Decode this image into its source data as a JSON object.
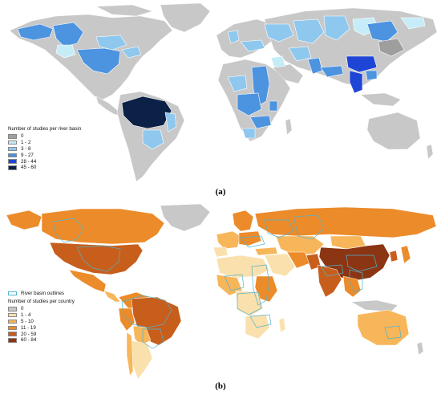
{
  "colors": {
    "ocean": "#ffffff",
    "land_default": "#c8c8c8",
    "basin_outline": "#4fb3cf"
  },
  "panel_a": {
    "caption_label": "(a)",
    "legend": {
      "title": "Number of studies per river basin",
      "items": [
        {
          "label": "0",
          "color": "#9e9e9e"
        },
        {
          "label": "1 - 2",
          "color": "#c6ecf7"
        },
        {
          "label": "3 - 8",
          "color": "#8fc8ee"
        },
        {
          "label": "9 - 27",
          "color": "#4c93e0"
        },
        {
          "label": "28 - 44",
          "color": "#1f45d6"
        },
        {
          "label": "45 - 60",
          "color": "#0b2246"
        }
      ]
    }
  },
  "panel_b": {
    "caption_label": "(b)",
    "legend": {
      "outline_label": "River basin outlines",
      "title": "Number of studies per country",
      "items": [
        {
          "label": "0",
          "color": "#c8c8c8"
        },
        {
          "label": "1 - 4",
          "color": "#fae0ac"
        },
        {
          "label": "5 - 10",
          "color": "#f7b65a"
        },
        {
          "label": "11 - 19",
          "color": "#ec8b2a"
        },
        {
          "label": "20 - 59",
          "color": "#c85e1c"
        },
        {
          "label": "60 - 84",
          "color": "#8b3513"
        }
      ]
    }
  }
}
